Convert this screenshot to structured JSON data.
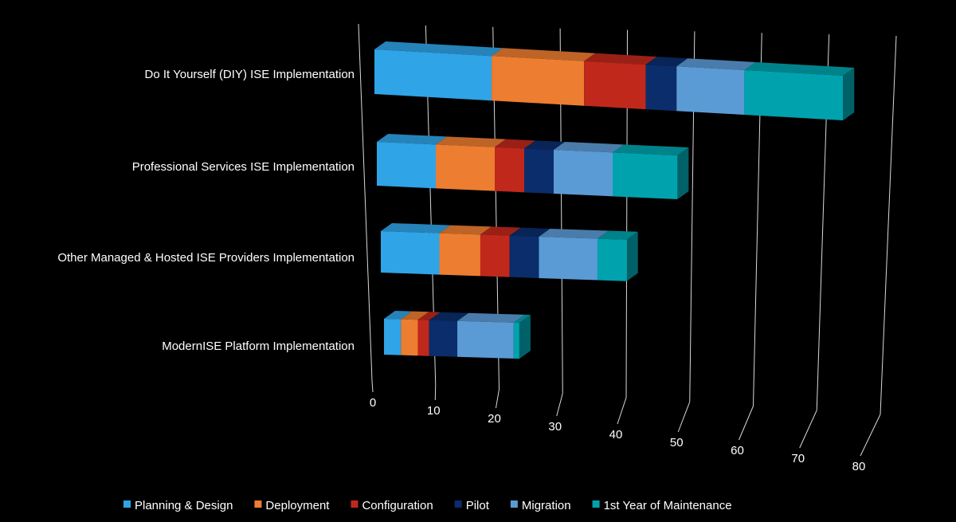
{
  "chart_data": {
    "type": "bar",
    "orientation": "horizontal",
    "stacked": true,
    "style": "3d",
    "title": "",
    "xlabel": "",
    "ylabel": "",
    "xlim": [
      0,
      80
    ],
    "xticks": [
      "0",
      "10",
      "20",
      "30",
      "40",
      "50",
      "60",
      "70",
      "80"
    ],
    "grid": true,
    "legend_position": "bottom",
    "categories": [
      "Do It Yourself (DIY) ISE Implementation",
      "Professional Services ISE Implementation",
      "Other Managed & Hosted ISE Providers Implementation",
      "ModernISE Platform Implementation"
    ],
    "series": [
      {
        "name": "Planning & Design",
        "color": "#2fa4e7",
        "values": [
          19,
          10,
          10,
          3
        ]
      },
      {
        "name": "Deployment",
        "color": "#ed7d31",
        "values": [
          15,
          10,
          7,
          3
        ]
      },
      {
        "name": "Configuration",
        "color": "#c0281c",
        "values": [
          10,
          5,
          5,
          2
        ]
      },
      {
        "name": "Pilot",
        "color": "#0b2d6b",
        "values": [
          5,
          5,
          5,
          5
        ]
      },
      {
        "name": "Migration",
        "color": "#5b9bd5",
        "values": [
          11,
          10,
          10,
          10
        ]
      },
      {
        "name": "1st Year of Maintenance",
        "color": "#00a3ad",
        "values": [
          16,
          11,
          5,
          1
        ]
      }
    ]
  }
}
